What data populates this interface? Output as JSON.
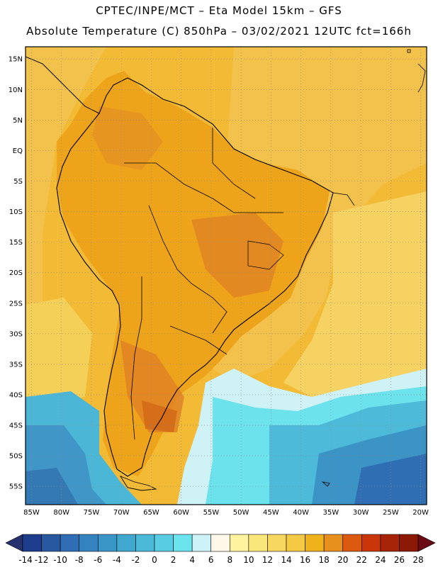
{
  "header": {
    "line1": "CPTEC/INPE/MCT –  Eta Model 15km – GFS",
    "line2": "Absolute Temperature (C) 850hPa – 03/02/2021 12UTC fct=166h"
  },
  "map": {
    "lat_labels": [
      "15N",
      "10N",
      "5N",
      "EQ",
      "5S",
      "10S",
      "15S",
      "20S",
      "25S",
      "30S",
      "35S",
      "40S",
      "45S",
      "50S",
      "55S"
    ],
    "lon_labels": [
      "85W",
      "80W",
      "75W",
      "70W",
      "65W",
      "60W",
      "55W",
      "50W",
      "45W",
      "40W",
      "35W",
      "30W",
      "25W",
      "20W"
    ],
    "lon_range": [
      -86,
      -19
    ],
    "lat_range": [
      17,
      -58
    ]
  },
  "colorbar": {
    "labels": [
      "-14",
      "-12",
      "-10",
      "-8",
      "-6",
      "-4",
      "-2",
      "0",
      "2",
      "4",
      "6",
      "8",
      "10",
      "12",
      "14",
      "16",
      "18",
      "20",
      "22",
      "24",
      "26",
      "28"
    ],
    "low_color": "#26326e",
    "high_color": "#6a0a14",
    "colors": [
      "#1e3c8c",
      "#2858a0",
      "#2f6eb4",
      "#3582c0",
      "#3b96c8",
      "#40a8cf",
      "#4bbad8",
      "#58cce2",
      "#6be4ee",
      "#cdf2f8",
      "#fff8e8",
      "#fff3a0",
      "#fae77a",
      "#f7d760",
      "#f4c945",
      "#f0b21c",
      "#e8901e",
      "#db5a10",
      "#c8360a",
      "#a82408",
      "#8c1806"
    ]
  },
  "colors": {
    "ocean_warm": "#f3c24a",
    "land_warm": "#eeaa1c",
    "hot": "#e08a2a",
    "cold_ocean": "#3fa4cf",
    "deep_cold": "#2a5f9f"
  }
}
